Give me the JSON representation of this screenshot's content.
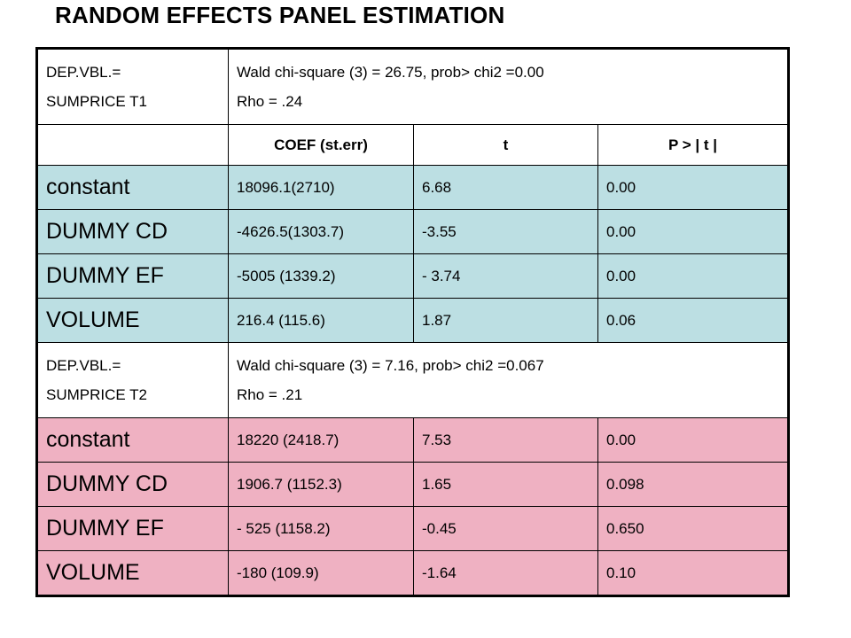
{
  "title": "RANDOM EFFECTS PANEL ESTIMATION",
  "colors": {
    "t1_rows": "#bcdfe3",
    "t2_rows": "#efb1c2",
    "border": "#000000"
  },
  "columns": {
    "coef": "COEF (st.err)",
    "t": "t",
    "p": "P > | t |"
  },
  "t1": {
    "dep_line1": "DEP.VBL.=",
    "dep_line2": "SUMPRICE T1",
    "stats_line1": "Wald chi-square (3) = 26.75, prob> chi2 =0.00",
    "stats_line2": "Rho = .24",
    "rows": [
      {
        "label": "constant",
        "coef": "18096.1(2710)",
        "t": "6.68",
        "p": "0.00"
      },
      {
        "label": "DUMMY CD",
        "coef": "-4626.5(1303.7)",
        "t": "-3.55",
        "p": "0.00"
      },
      {
        "label": "DUMMY EF",
        "coef": "-5005 (1339.2)",
        "t": "- 3.74",
        "p": "0.00"
      },
      {
        "label": "VOLUME",
        "coef": "216.4 (115.6)",
        "t": "1.87",
        "p": "0.06"
      }
    ]
  },
  "t2": {
    "dep_line1": "DEP.VBL.=",
    "dep_line2": "SUMPRICE T2",
    "stats_line1": "Wald chi-square (3) = 7.16, prob> chi2 =0.067",
    "stats_line2": "Rho = .21",
    "rows": [
      {
        "label": "constant",
        "coef": "18220 (2418.7)",
        "t": "7.53",
        "p": "0.00"
      },
      {
        "label": "DUMMY CD",
        "coef": "1906.7 (1152.3)",
        "t": "1.65",
        "p": "0.098"
      },
      {
        "label": "DUMMY EF",
        "coef": "- 525 (1158.2)",
        "t": "-0.45",
        "p": "0.650"
      },
      {
        "label": "VOLUME",
        "coef": "-180 (109.9)",
        "t": "-1.64",
        "p": "0.10"
      }
    ]
  }
}
